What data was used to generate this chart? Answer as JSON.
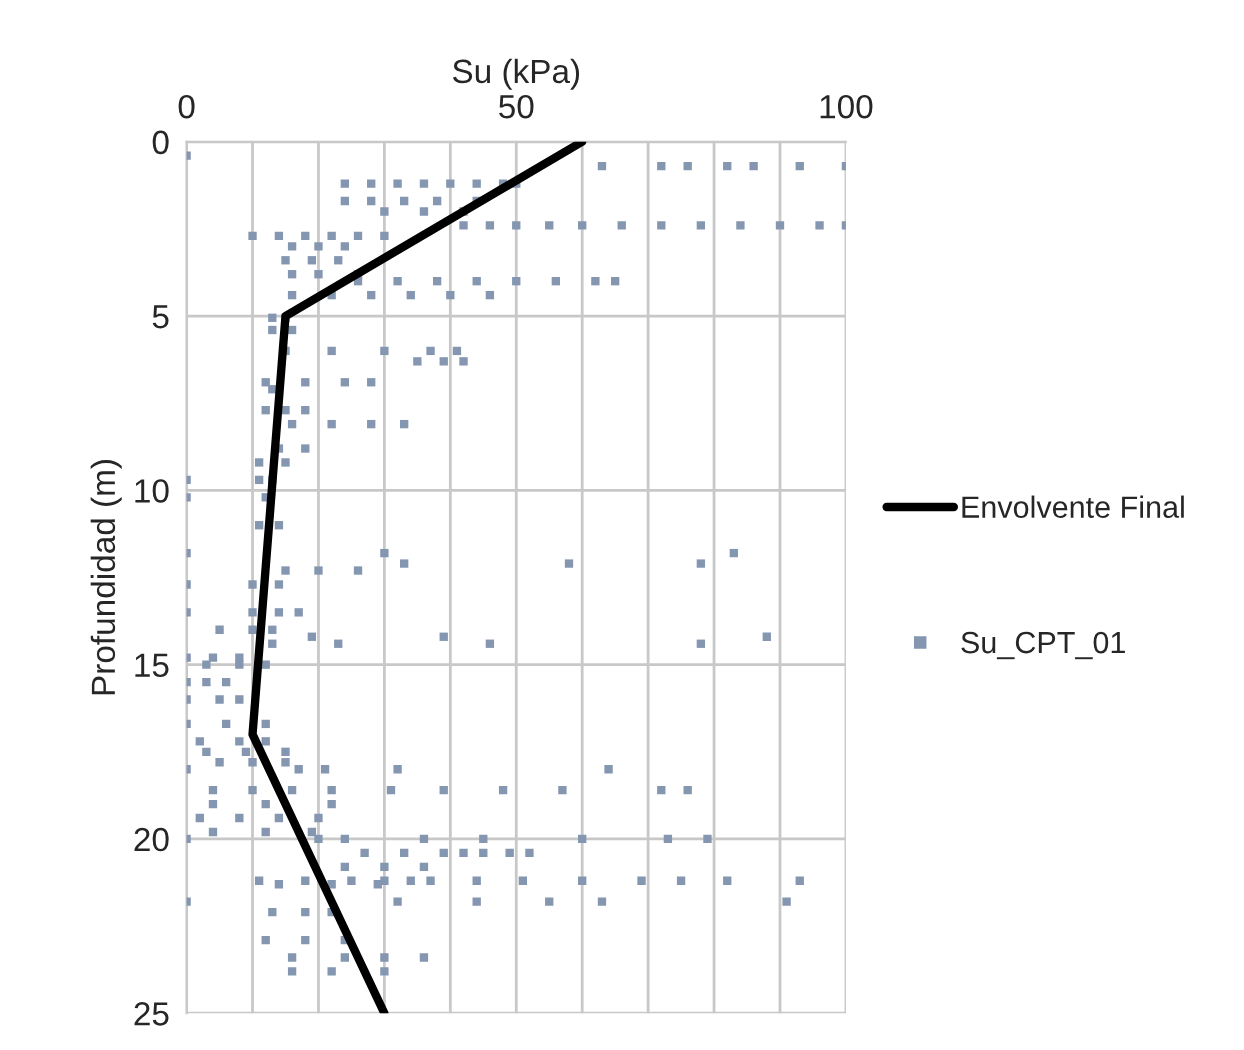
{
  "chart_data": {
    "type": "scatter",
    "xlabel": "Su (kPa)",
    "ylabel": "Profundidad (m)",
    "xlim": [
      0,
      100
    ],
    "xticks": [
      0,
      {
        "value": 10,
        "label": null
      },
      {
        "value": 20,
        "label": null
      },
      {
        "value": 30,
        "label": null
      },
      {
        "value": 40,
        "label": null
      },
      50,
      {
        "value": 60,
        "label": null
      },
      {
        "value": 70,
        "label": null
      },
      {
        "value": 80,
        "label": null
      },
      {
        "value": 90,
        "label": null
      },
      100
    ],
    "ylim": [
      25,
      0
    ],
    "yticks": [
      0,
      5,
      10,
      15,
      20,
      25
    ],
    "grid": true,
    "legend": "right",
    "series": [
      {
        "name": "Envolvente Final",
        "type": "line",
        "color": "#000000",
        "line_style": "solid",
        "marker": "none",
        "x": [
          60,
          15,
          10,
          30
        ],
        "values": [
          0,
          5,
          17,
          25
        ]
      },
      {
        "name": "Su_CPT_01",
        "color": "#8496b0",
        "marker": "square",
        "x": [
          0,
          63,
          72,
          76,
          82,
          86,
          93,
          100,
          24,
          28,
          32,
          36,
          40,
          44,
          48,
          50,
          24,
          28,
          33,
          38,
          44,
          30,
          36,
          42,
          42,
          46,
          50,
          55,
          60,
          66,
          72,
          78,
          84,
          90,
          96,
          100,
          10,
          14,
          18,
          22,
          26,
          30,
          16,
          20,
          24,
          15,
          19,
          23,
          16,
          20,
          26,
          26,
          32,
          38,
          44,
          50,
          56,
          62,
          65,
          16,
          22,
          28,
          34,
          40,
          46,
          13,
          15,
          13,
          16,
          15,
          22,
          30,
          37,
          41,
          35,
          39,
          42,
          12,
          18,
          24,
          28,
          13,
          12,
          15,
          18,
          16,
          22,
          28,
          33,
          14,
          18,
          11,
          15,
          0,
          11,
          13,
          0,
          12,
          11,
          14,
          0,
          30,
          83,
          33,
          58,
          78,
          15,
          20,
          26,
          0,
          10,
          14,
          0,
          10,
          14,
          17,
          5,
          10,
          13,
          19,
          39,
          88,
          13,
          23,
          46,
          78,
          0,
          4,
          8,
          3,
          8,
          12,
          0,
          3,
          6,
          0,
          5,
          8,
          0,
          6,
          12,
          2,
          8,
          12,
          3,
          9,
          15,
          5,
          10,
          15,
          0,
          17,
          21,
          32,
          64,
          4,
          10,
          16,
          22,
          31,
          39,
          48,
          57,
          72,
          76,
          4,
          12,
          22,
          2,
          8,
          14,
          20,
          4,
          12,
          19,
          0,
          20,
          24,
          36,
          45,
          60,
          73,
          79,
          27,
          33,
          39,
          42,
          45,
          49,
          52,
          24,
          30,
          36,
          11,
          18,
          25,
          30,
          34,
          37,
          44,
          51,
          60,
          69,
          75,
          82,
          93,
          14,
          22,
          29,
          0,
          32,
          44,
          55,
          63,
          91,
          13,
          18,
          22,
          12,
          18,
          24,
          16,
          24,
          30,
          36,
          16,
          22,
          30
        ],
        "values": [
          0.4,
          0.7,
          0.7,
          0.7,
          0.7,
          0.7,
          0.7,
          0.7,
          1.2,
          1.2,
          1.2,
          1.2,
          1.2,
          1.2,
          1.2,
          1.2,
          1.7,
          1.7,
          1.7,
          1.7,
          1.7,
          2.0,
          2.0,
          2.0,
          2.4,
          2.4,
          2.4,
          2.4,
          2.4,
          2.4,
          2.4,
          2.4,
          2.4,
          2.4,
          2.4,
          2.4,
          2.7,
          2.7,
          2.7,
          2.7,
          2.7,
          2.7,
          3.0,
          3.0,
          3.0,
          3.4,
          3.4,
          3.4,
          3.8,
          3.8,
          3.8,
          4.0,
          4.0,
          4.0,
          4.0,
          4.0,
          4.0,
          4.0,
          4.0,
          4.4,
          4.4,
          4.4,
          4.4,
          4.4,
          4.4,
          5.05,
          5.05,
          5.4,
          5.4,
          6.0,
          6.0,
          6.0,
          6.0,
          6.0,
          6.3,
          6.3,
          6.3,
          6.9,
          6.9,
          6.9,
          6.9,
          7.1,
          7.7,
          7.7,
          7.7,
          8.1,
          8.1,
          8.1,
          8.1,
          8.8,
          8.8,
          9.2,
          9.2,
          9.7,
          9.7,
          9.7,
          10.2,
          10.2,
          11.0,
          11.0,
          11.8,
          11.8,
          11.8,
          12.1,
          12.1,
          12.1,
          12.3,
          12.3,
          12.3,
          12.7,
          12.7,
          12.7,
          13.5,
          13.5,
          13.5,
          13.5,
          14.0,
          14.0,
          14.0,
          14.2,
          14.2,
          14.2,
          14.4,
          14.4,
          14.4,
          14.4,
          14.8,
          14.8,
          14.8,
          15.0,
          15.0,
          15.0,
          15.5,
          15.5,
          15.5,
          16.0,
          16.0,
          16.0,
          16.7,
          16.7,
          16.7,
          17.2,
          17.2,
          17.2,
          17.5,
          17.5,
          17.5,
          17.8,
          17.8,
          17.8,
          18.0,
          18.0,
          18.0,
          18.0,
          18.0,
          18.6,
          18.6,
          18.6,
          18.6,
          18.6,
          18.6,
          18.6,
          18.6,
          18.6,
          18.6,
          19.0,
          19.0,
          19.0,
          19.4,
          19.4,
          19.4,
          19.4,
          19.8,
          19.8,
          19.8,
          20.0,
          20.0,
          20.0,
          20.0,
          20.0,
          20.0,
          20.0,
          20.0,
          20.4,
          20.4,
          20.4,
          20.4,
          20.4,
          20.4,
          20.4,
          20.8,
          20.8,
          20.8,
          21.2,
          21.2,
          21.2,
          21.2,
          21.2,
          21.2,
          21.2,
          21.2,
          21.2,
          21.2,
          21.2,
          21.2,
          21.2,
          21.3,
          21.3,
          21.3,
          21.8,
          21.8,
          21.8,
          21.8,
          21.8,
          21.8,
          22.1,
          22.1,
          22.1,
          22.9,
          22.9,
          22.9,
          23.4,
          23.4,
          23.4,
          23.4,
          23.8,
          23.8,
          23.8
        ]
      }
    ]
  }
}
